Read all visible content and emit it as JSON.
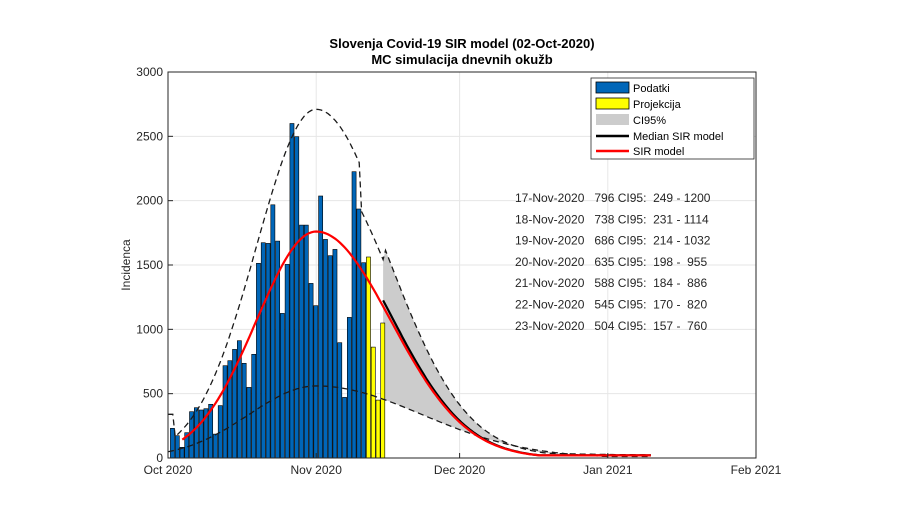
{
  "chart_data": {
    "type": "bar",
    "title": "Slovenja Covid-19 SIR model (02-Oct-2020)",
    "subtitle": "MC simulacija dnevnih okužb",
    "xlabel": "",
    "ylabel": "Incidenca",
    "ylim": [
      0,
      3000
    ],
    "yticks": [
      "0",
      "500",
      "1000",
      "1500",
      "2000",
      "2500",
      "3000"
    ],
    "ytick_values": [
      0,
      500,
      1000,
      1500,
      2000,
      2500,
      3000
    ],
    "xlim_days": [
      0,
      123
    ],
    "xticks": [
      "Oct 2020",
      "Nov 2020",
      "Dec 2020",
      "Jan 2021",
      "Feb 2021"
    ],
    "xtick_days": [
      0,
      31,
      61,
      92,
      123
    ],
    "grid": true,
    "legend_position": "top-right",
    "legend": [
      {
        "label": "Podatki",
        "type": "patch",
        "color": "#0066b8"
      },
      {
        "label": "Projekcija",
        "type": "patch",
        "color": "#ffff00"
      },
      {
        "label": "CI95%",
        "type": "patch",
        "color": "#cccccc"
      },
      {
        "label": "Median SIR model",
        "type": "line",
        "color": "#000000"
      },
      {
        "label": "SIR model",
        "type": "line",
        "color": "#ff0000"
      }
    ],
    "series": [
      {
        "name": "Podatki",
        "color": "#0066b8",
        "start_day": 0,
        "values": [
          231,
          173,
          83,
          197,
          360,
          391,
          373,
          383,
          417,
          186,
          407,
          717,
          756,
          844,
          912,
          736,
          549,
          806,
          1513,
          1673,
          1668,
          1968,
          1686,
          1124,
          1505,
          2600,
          2497,
          1810,
          1810,
          1357,
          1184,
          2036,
          1699,
          1572,
          1621,
          896,
          471,
          1093,
          2225,
          1935,
          1518
        ]
      },
      {
        "name": "Projekcija",
        "color": "#ffff00",
        "start_day": 41,
        "values": [
          1562,
          862,
          450,
          1049
        ]
      }
    ],
    "annotations": [
      "17-Nov-2020   796 CI95:  249 - 1200",
      "18-Nov-2020   738 CI95:  231 - 1114",
      "19-Nov-2020   686 CI95:  214 - 1032",
      "20-Nov-2020   635 CI95:  198 -  955",
      "21-Nov-2020   588 CI95:  184 -  886",
      "22-Nov-2020   545 CI95:  170 -  820",
      "23-Nov-2020   504 CI95:  157 -  760"
    ],
    "curves": {
      "sir_peak_day": 31,
      "sir_peak": 1760,
      "sir_start_day": 3,
      "sir_start": 220,
      "upper_peak": 2710,
      "lower_peak": 560,
      "ci_start_day": 45,
      "curve_end_day": 101
    }
  }
}
